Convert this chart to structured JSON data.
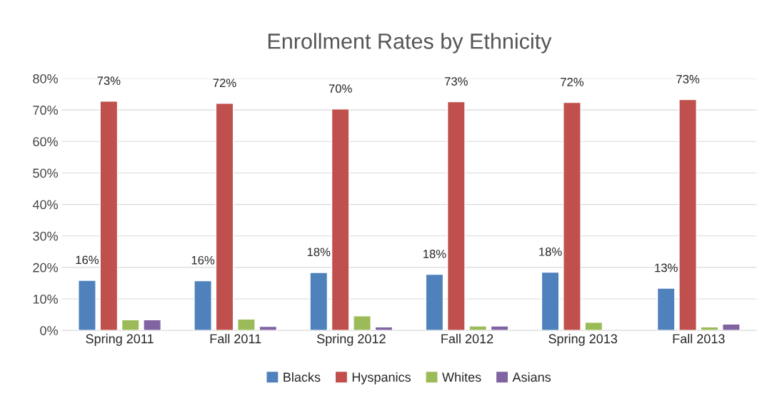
{
  "chart_data": {
    "type": "bar",
    "title": "Enrollment Rates by Ethnicity",
    "categories": [
      "Spring 2011",
      "Fall 2011",
      "Spring 2012",
      "Fall 2012",
      "Spring 2013",
      "Fall 2013"
    ],
    "series": [
      {
        "name": "Blacks",
        "color": "#4f81bd",
        "values": [
          15.9,
          15.8,
          18.4,
          17.8,
          18.5,
          13.4
        ],
        "value_labels": [
          "16%",
          "16%",
          "18%",
          "18%",
          "18%",
          "13%"
        ]
      },
      {
        "name": "Hyspanics",
        "color": "#c0504d",
        "values": [
          72.8,
          72.1,
          70.3,
          72.6,
          72.4,
          73.3
        ],
        "value_labels": [
          "73%",
          "72%",
          "70%",
          "73%",
          "72%",
          "73%"
        ]
      },
      {
        "name": "Whites",
        "color": "#9bbb59",
        "values": [
          3.4,
          3.6,
          4.6,
          1.4,
          2.6,
          1.1
        ]
      },
      {
        "name": "Asians",
        "color": "#8064a2",
        "values": [
          3.4,
          1.3,
          1.1,
          1.4,
          null,
          2.0
        ]
      }
    ],
    "ylim": [
      0,
      80
    ],
    "yticks": [
      {
        "value": 0,
        "label": "0%"
      },
      {
        "value": 10,
        "label": "10%"
      },
      {
        "value": 20,
        "label": "20%"
      },
      {
        "value": 30,
        "label": "30%"
      },
      {
        "value": 40,
        "label": "40%"
      },
      {
        "value": 50,
        "label": "50%"
      },
      {
        "value": 60,
        "label": "60%"
      },
      {
        "value": 70,
        "label": "70%"
      },
      {
        "value": 80,
        "label": "80%"
      }
    ],
    "grid": "y",
    "legend": "bottom"
  }
}
